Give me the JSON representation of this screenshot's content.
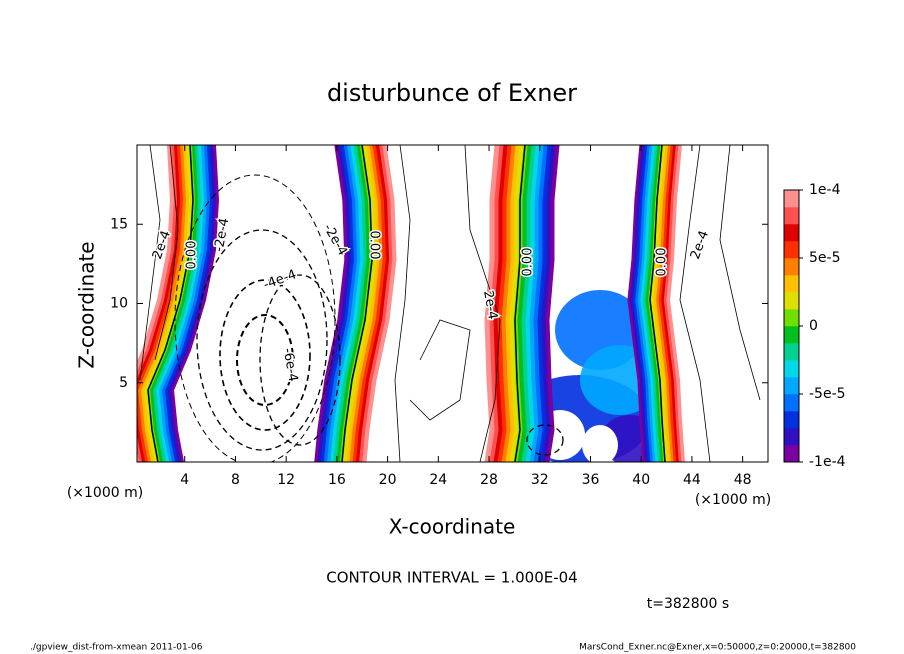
{
  "chart_data": {
    "type": "contour",
    "title": "disturbunce of Exner",
    "xlabel": "X-coordinate",
    "ylabel": "Z-coordinate",
    "xunit": "(×1000 m)",
    "yunit": "(×1000 m)",
    "xlim": [
      0,
      50
    ],
    "xticks": [
      4,
      8,
      12,
      16,
      20,
      24,
      28,
      32,
      36,
      40,
      44,
      48
    ],
    "ylim": [
      0,
      20
    ],
    "yticks": [
      5,
      10,
      15
    ],
    "colorbar": {
      "lim": [
        -0.0001,
        0.0001
      ],
      "ticks": [
        {
          "value": 0.0001,
          "label": "1e-4"
        },
        {
          "value": 5e-05,
          "label": "5e-5"
        },
        0,
        {
          "value": -5e-05,
          "label": "-5e-5"
        },
        {
          "value": -0.0001,
          "label": "-1e-4"
        }
      ],
      "colors": [
        "#7a00a0",
        "#3010c0",
        "#0030e0",
        "#0070ff",
        "#00a8ff",
        "#00d8e8",
        "#00d090",
        "#00c020",
        "#70e000",
        "#e0e000",
        "#ffc000",
        "#ff8000",
        "#ff3000",
        "#e00000",
        "#ff5050",
        "#ff9090"
      ]
    },
    "contour_labels": [
      "2e-4",
      "0.00",
      "-2e-4",
      "-4e-4",
      "-6e-4",
      "-2e-4",
      "0.00",
      "2e-4",
      "0.00",
      "0.00",
      "2e-4"
    ],
    "note": "CONTOUR INTERVAL = 1.000E-04",
    "time": "t=382800 s",
    "footer_left": "./gpview_dist-from-xmean  2011-01-06",
    "footer_right": "MarsCond_Exner.nc@Exner,x=0:50000,z=0:20000,t=382800"
  }
}
